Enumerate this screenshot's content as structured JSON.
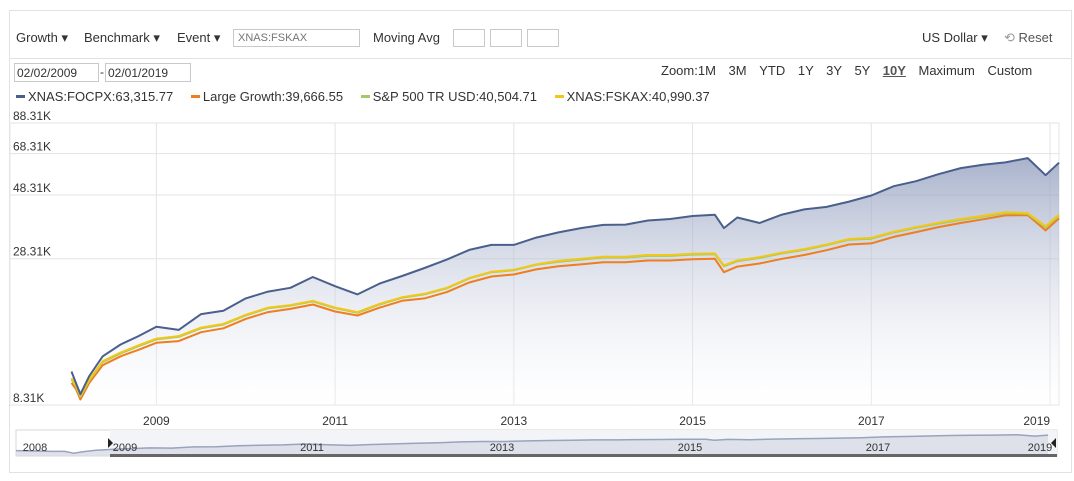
{
  "toolbar": {
    "growth_label": "Growth ▾",
    "benchmark_label": "Benchmark ▾",
    "event_label": "Event ▾",
    "ticker_placeholder": "XNAS:FSKAX",
    "moving_avg_label": "Moving Avg",
    "currency_label": "US Dollar ▾",
    "reset_label": "Reset"
  },
  "date_range": {
    "start": "02/02/2009",
    "separator": "-",
    "end": "02/01/2019"
  },
  "zoom": {
    "label": "Zoom:",
    "options": [
      "1M",
      "3M",
      "YTD",
      "1Y",
      "3Y",
      "5Y",
      "10Y",
      "Maximum",
      "Custom"
    ],
    "active": "10Y"
  },
  "navigator": {
    "ticks": [
      "2008",
      "2009",
      "2011",
      "2013",
      "2015",
      "2017",
      "2019"
    ]
  },
  "chart_data": {
    "type": "area",
    "ylabel_ticks": [
      "88.31K",
      "68.31K",
      "48.31K",
      "28.31K",
      "8.31K"
    ],
    "y_tick_values": [
      88310,
      68310,
      48310,
      28310,
      8310
    ],
    "x_tick_labels": [
      "2009",
      "2011",
      "2013",
      "2015",
      "2017",
      "2019"
    ],
    "x_tick_years": [
      2009,
      2011,
      2013,
      2015,
      2017,
      2019
    ],
    "x_range": [
      2008.0,
      2019.1
    ],
    "ylim": [
      8310,
      88310
    ],
    "y_scale": "log",
    "grid": true,
    "legend_position": "top-left",
    "x": [
      2008.05,
      2008.1,
      2008.15,
      2008.25,
      2008.4,
      2008.6,
      2008.8,
      2009.0,
      2009.25,
      2009.5,
      2009.75,
      2010.0,
      2010.25,
      2010.5,
      2010.75,
      2011.0,
      2011.25,
      2011.5,
      2011.75,
      2012.0,
      2012.25,
      2012.5,
      2012.75,
      2013.0,
      2013.25,
      2013.5,
      2013.75,
      2014.0,
      2014.25,
      2014.5,
      2014.75,
      2015.0,
      2015.25,
      2015.35,
      2015.5,
      2015.75,
      2016.0,
      2016.25,
      2016.5,
      2016.75,
      2017.0,
      2017.25,
      2017.5,
      2017.75,
      2018.0,
      2018.25,
      2018.5,
      2018.75,
      2018.95,
      2019.1
    ],
    "series": [
      {
        "name": "XNAS:FOCPX:63,315.77",
        "color": "#4a5f8c",
        "values": [
          11000,
          10000,
          9100,
          10600,
          12500,
          13800,
          14800,
          16000,
          15600,
          17800,
          18300,
          20300,
          21500,
          22200,
          24300,
          22500,
          21000,
          23000,
          24500,
          26200,
          28100,
          30500,
          31800,
          31800,
          33800,
          35300,
          36600,
          37600,
          37700,
          39000,
          39500,
          40500,
          40900,
          36600,
          40000,
          38200,
          41000,
          42800,
          43700,
          45700,
          48100,
          52000,
          54200,
          57500,
          60500,
          62200,
          63500,
          65800,
          57000,
          63300
        ]
      },
      {
        "name": "Large Growth:39,666.55",
        "color": "#f07d1e",
        "values": [
          10000,
          9500,
          8700,
          10000,
          11600,
          12500,
          13200,
          14000,
          14200,
          15300,
          15800,
          17100,
          18100,
          18600,
          19300,
          18200,
          17600,
          18800,
          19900,
          20300,
          21400,
          23200,
          24400,
          24800,
          25900,
          26600,
          27000,
          27500,
          27500,
          27900,
          27900,
          28200,
          28300,
          25300,
          26500,
          27200,
          28300,
          29200,
          30400,
          31900,
          32200,
          34000,
          35400,
          36900,
          38200,
          39400,
          40700,
          40800,
          35900,
          39700
        ]
      },
      {
        "name": "S&P 500 TR USD:40,504.71",
        "color": "#a3c969",
        "values": [
          10300,
          9700,
          8900,
          10200,
          11900,
          12800,
          13600,
          14400,
          14700,
          15800,
          16300,
          17600,
          18700,
          19100,
          19800,
          18700,
          18000,
          19300,
          20400,
          21000,
          22100,
          24000,
          25300,
          25700,
          26900,
          27600,
          28100,
          28600,
          28600,
          29000,
          29000,
          29300,
          29400,
          26600,
          27700,
          28500,
          29600,
          30500,
          31700,
          33200,
          33500,
          35300,
          36700,
          38000,
          39200,
          40300,
          41500,
          41200,
          36800,
          40500
        ]
      },
      {
        "name": "XNAS:FSKAX:40,990.37",
        "color": "#f2c818",
        "values": [
          10400,
          9800,
          9000,
          10300,
          12000,
          12900,
          13700,
          14500,
          14800,
          15900,
          16400,
          17700,
          18800,
          19200,
          19900,
          18800,
          18100,
          19400,
          20500,
          21100,
          22200,
          24100,
          25400,
          25800,
          27000,
          27800,
          28300,
          28800,
          28800,
          29200,
          29200,
          29500,
          29600,
          26800,
          27900,
          28700,
          29800,
          30700,
          31900,
          33400,
          33700,
          35500,
          36900,
          38300,
          39500,
          40600,
          41800,
          41500,
          37200,
          41000
        ]
      }
    ]
  }
}
